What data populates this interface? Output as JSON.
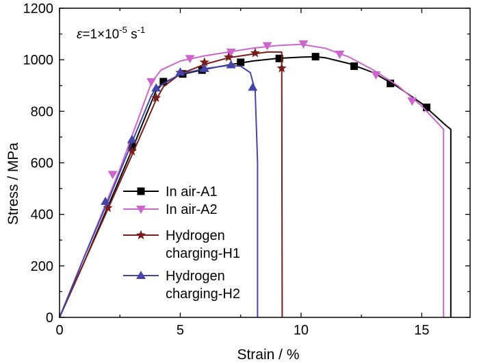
{
  "chart_data": {
    "type": "line",
    "title": "",
    "xlabel": "Strain / %",
    "ylabel": "Stress / MPa",
    "xlim": [
      0,
      17
    ],
    "ylim": [
      0,
      1200
    ],
    "xticks": [
      0,
      5,
      10,
      15
    ],
    "yticks": [
      0,
      200,
      400,
      600,
      800,
      1000,
      1200
    ],
    "grid": false,
    "legend_position": "bottom-left",
    "annotation": {
      "epsilon": "ε",
      "equals_mantissa": "=1×10",
      "exponent": "-5",
      "unit": " s",
      "unit_exponent": "-1"
    },
    "series": [
      {
        "name": "In air-A1",
        "color": "#000000",
        "marker": "square",
        "line": [
          [
            0,
            0
          ],
          [
            1,
            210
          ],
          [
            2,
            430
          ],
          [
            3,
            650
          ],
          [
            3.6,
            790
          ],
          [
            4,
            880
          ],
          [
            4.3,
            910
          ],
          [
            5,
            942
          ],
          [
            6,
            963
          ],
          [
            7,
            980
          ],
          [
            8,
            995
          ],
          [
            9,
            1005
          ],
          [
            10,
            1010
          ],
          [
            10.6,
            1012
          ],
          [
            11,
            1008
          ],
          [
            12,
            985
          ],
          [
            13,
            950
          ],
          [
            14,
            895
          ],
          [
            15,
            830
          ],
          [
            16,
            745
          ],
          [
            16.2,
            730
          ],
          [
            16.2,
            0
          ]
        ],
        "markers": [
          [
            3,
            665
          ],
          [
            4.3,
            915
          ],
          [
            5.1,
            945
          ],
          [
            5.9,
            960
          ],
          [
            7.5,
            990
          ],
          [
            9.1,
            1005
          ],
          [
            10.6,
            1012
          ],
          [
            12.2,
            975
          ],
          [
            13.7,
            908
          ],
          [
            15.2,
            815
          ]
        ]
      },
      {
        "name": "In air-A2",
        "color": "#cc66cc",
        "marker": "triangle-down",
        "line": [
          [
            0,
            0
          ],
          [
            1,
            230
          ],
          [
            2,
            460
          ],
          [
            2.5,
            575
          ],
          [
            3.8,
            910
          ],
          [
            4.2,
            960
          ],
          [
            5,
            995
          ],
          [
            6,
            1015
          ],
          [
            7,
            1030
          ],
          [
            8,
            1045
          ],
          [
            9,
            1055
          ],
          [
            10,
            1060
          ],
          [
            11,
            1045
          ],
          [
            12,
            1010
          ],
          [
            13,
            960
          ],
          [
            14,
            900
          ],
          [
            15,
            820
          ],
          [
            15.9,
            730
          ],
          [
            15.9,
            0
          ]
        ],
        "markers": [
          [
            2.2,
            555
          ],
          [
            3.8,
            915
          ],
          [
            5.4,
            1005
          ],
          [
            7.1,
            1030
          ],
          [
            8.6,
            1055
          ],
          [
            10.1,
            1062
          ],
          [
            11.6,
            1022
          ],
          [
            13.1,
            942
          ],
          [
            14.6,
            840
          ]
        ]
      },
      {
        "name": "Hydrogen charging-H1",
        "color": "#7a1c1c",
        "marker": "star",
        "line": [
          [
            0,
            0
          ],
          [
            1,
            210
          ],
          [
            2,
            420
          ],
          [
            3,
            630
          ],
          [
            4,
            845
          ],
          [
            4.3,
            895
          ],
          [
            5,
            945
          ],
          [
            6,
            982
          ],
          [
            7,
            1008
          ],
          [
            8,
            1022
          ],
          [
            8.6,
            1030
          ],
          [
            9.2,
            1030
          ],
          [
            9.22,
            0
          ]
        ],
        "markers": [
          [
            2,
            425
          ],
          [
            3,
            645
          ],
          [
            4,
            852
          ],
          [
            5,
            950
          ],
          [
            6,
            990
          ],
          [
            7,
            1010
          ],
          [
            8.1,
            1026
          ],
          [
            9.2,
            967
          ]
        ]
      },
      {
        "name": "Hydrogen charging-H2",
        "color": "#4444aa",
        "marker": "triangle-up",
        "line": [
          [
            0,
            0
          ],
          [
            1,
            230
          ],
          [
            2,
            450
          ],
          [
            3,
            680
          ],
          [
            3.8,
            860
          ],
          [
            4,
            890
          ],
          [
            5,
            945
          ],
          [
            6,
            965
          ],
          [
            7,
            978
          ],
          [
            7.5,
            975
          ],
          [
            7.9,
            950
          ],
          [
            8.1,
            880
          ],
          [
            8.2,
            600
          ],
          [
            8.2,
            0
          ]
        ],
        "markers": [
          [
            1.9,
            450
          ],
          [
            3,
            690
          ],
          [
            4,
            890
          ],
          [
            5,
            952
          ],
          [
            6,
            966
          ],
          [
            7.1,
            980
          ],
          [
            8,
            893
          ]
        ]
      }
    ]
  },
  "legend": {
    "items": [
      {
        "line1": "In air-A1",
        "line2": ""
      },
      {
        "line1": "In air-A2",
        "line2": ""
      },
      {
        "line1": "Hydrogen",
        "line2": "charging-H1"
      },
      {
        "line1": "Hydrogen",
        "line2": "charging-H2"
      }
    ]
  }
}
